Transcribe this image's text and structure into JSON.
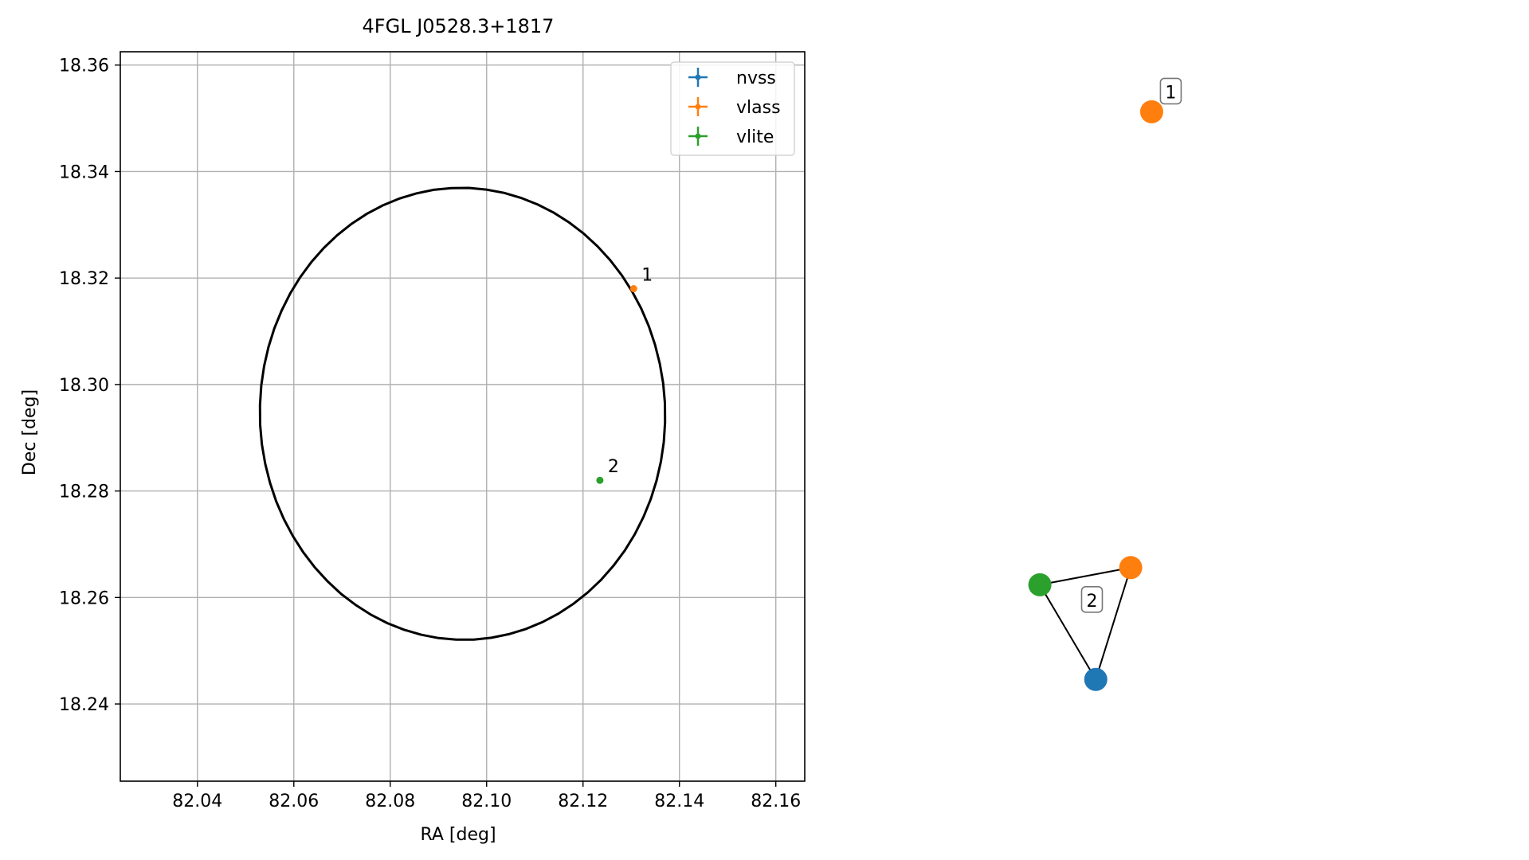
{
  "chart_data": [
    {
      "type": "scatter",
      "title": "4FGL J0528.3+1817",
      "xlabel": "RA [deg]",
      "ylabel": "Dec [deg]",
      "xlim": [
        82.024,
        82.166
      ],
      "ylim": [
        18.2255,
        18.3625
      ],
      "xticks": [
        "82.04",
        "82.06",
        "82.08",
        "82.10",
        "82.12",
        "82.14",
        "82.16"
      ],
      "yticks": [
        "18.24",
        "18.26",
        "18.28",
        "18.30",
        "18.32",
        "18.34",
        "18.36"
      ],
      "grid": true,
      "legend_position": "top-right",
      "series": [
        {
          "name": "nvss",
          "color": "#1f77b4",
          "points": []
        },
        {
          "name": "vlass",
          "color": "#ff7f0e",
          "points": [
            {
              "x": 82.1305,
              "y": 18.318,
              "label": "1"
            }
          ]
        },
        {
          "name": "vlite",
          "color": "#2ca02c",
          "points": [
            {
              "x": 82.1235,
              "y": 18.282,
              "label": "2"
            }
          ]
        }
      ],
      "ellipse": {
        "center_x": 82.095,
        "center_y": 18.2945,
        "semi_axis_ra": 0.042,
        "semi_axis_dec": 0.0425,
        "angle_deg": 18,
        "color": "#000000"
      }
    },
    {
      "type": "network",
      "nodes": [
        {
          "id": "v1",
          "survey": "vlass",
          "color": "#ff7f0e",
          "x": 0.46,
          "y": 0.87
        },
        {
          "id": "v2",
          "survey": "vlass",
          "color": "#ff7f0e",
          "x": 0.43,
          "y": 0.34
        },
        {
          "id": "l2",
          "survey": "vlite",
          "color": "#2ca02c",
          "x": 0.3,
          "y": 0.32
        },
        {
          "id": "n2",
          "survey": "nvss",
          "color": "#1f77b4",
          "x": 0.38,
          "y": 0.21
        }
      ],
      "edges": [
        [
          "l2",
          "v2"
        ],
        [
          "l2",
          "n2"
        ],
        [
          "v2",
          "n2"
        ]
      ],
      "labels": [
        {
          "text": "1",
          "near": "v1"
        },
        {
          "text": "2",
          "near_group": [
            "v2",
            "l2",
            "n2"
          ]
        }
      ]
    }
  ]
}
